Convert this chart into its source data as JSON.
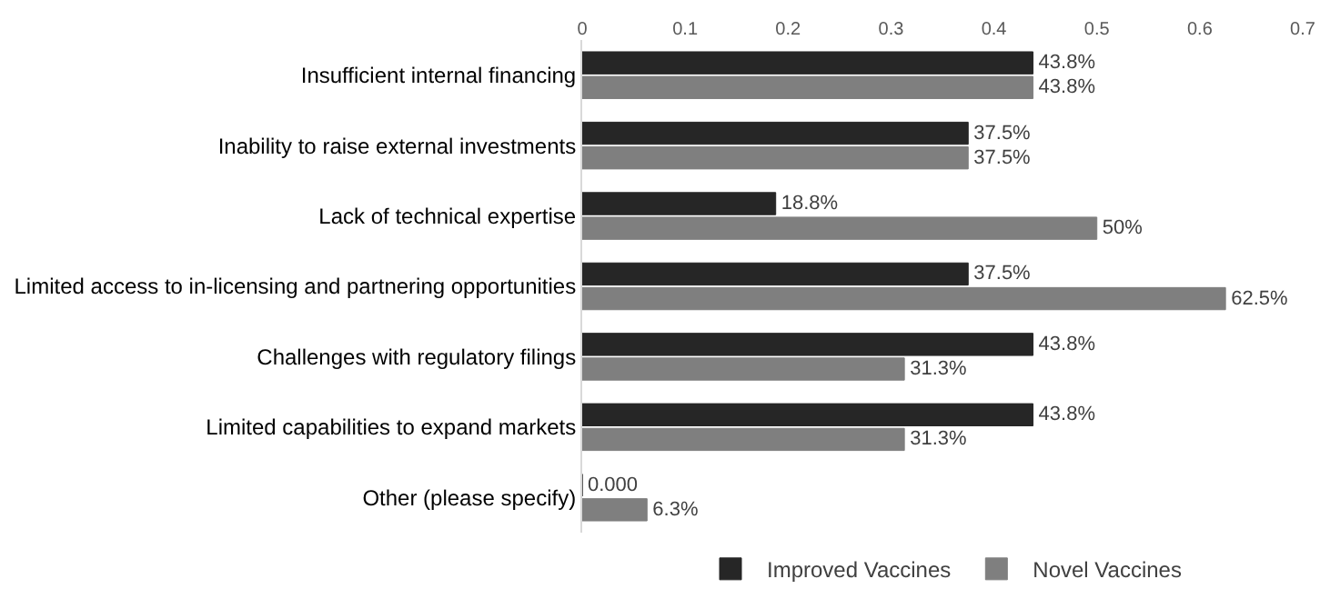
{
  "chart_data": {
    "type": "bar",
    "orientation": "horizontal",
    "categories": [
      "Insufficient internal financing",
      "Inability to raise external investments",
      "Lack of technical expertise",
      "Limited access to in-licensing and partnering opportunities",
      "Challenges with regulatory filings",
      "Limited capabilities to expand markets",
      "Other (please specify)"
    ],
    "series": [
      {
        "name": "Improved Vaccines",
        "color": "#262626",
        "values": [
          0.438,
          0.375,
          0.188,
          0.375,
          0.438,
          0.438,
          0
        ],
        "value_labels": [
          "43.8%",
          "37.5%",
          "18.8%",
          "37.5%",
          "43.8%",
          "43.8%",
          "0.000"
        ]
      },
      {
        "name": "Novel Vaccines",
        "color": "#7f7f7f",
        "values": [
          0.438,
          0.375,
          0.5,
          0.625,
          0.313,
          0.313,
          0.063
        ],
        "value_labels": [
          "43.8%",
          "37.5%",
          "50%",
          "62.5%",
          "31.3%",
          "31.3%",
          "6.3%"
        ]
      }
    ],
    "xlim": [
      0,
      0.7
    ],
    "xticks": [
      0,
      0.1,
      0.2,
      0.3,
      0.4,
      0.5,
      0.6,
      0.7
    ],
    "legend": "bottom"
  }
}
